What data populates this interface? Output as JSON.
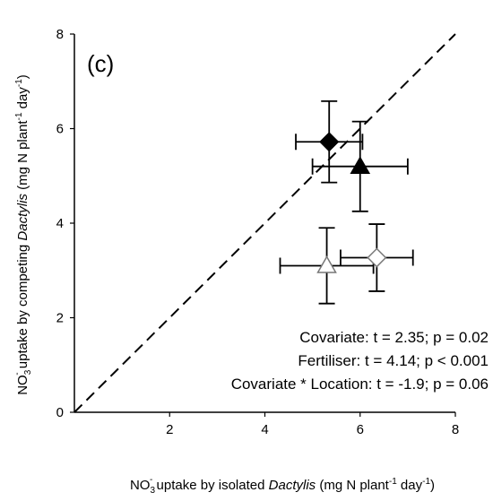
{
  "chart_data": {
    "type": "scatter",
    "panel_label": "(c)",
    "x_label_parts": [
      "NO",
      "3",
      "-",
      " uptake by isolated ",
      "Dactylis",
      " (mg N plant",
      "-1",
      " day",
      "-1",
      ")"
    ],
    "y_label_parts": [
      "NO",
      "3",
      "-",
      " uptake by competing ",
      "Dactylis",
      " (mg N plant",
      "-1",
      " day",
      "-1",
      ")"
    ],
    "annotations": [
      "Covariate: t = 2.35; p = 0.02",
      "Fertiliser: t = 4.14; p < 0.001",
      "Covariate * Location: t = -1.9; p = 0.06"
    ],
    "xlim": [
      0,
      8
    ],
    "xticks": [
      2,
      4,
      6,
      8
    ],
    "ylim": [
      0,
      8
    ],
    "yticks": [
      0,
      2,
      4,
      6,
      8
    ],
    "points": [
      {
        "x": 5.35,
        "y": 5.72,
        "xerr": 0.7,
        "yerr": 0.86,
        "marker": "diamond",
        "filled": true
      },
      {
        "x": 6.0,
        "y": 5.2,
        "xerr": 1.0,
        "yerr": 0.95,
        "marker": "triangle",
        "filled": true
      },
      {
        "x": 5.3,
        "y": 3.1,
        "xerr": 0.98,
        "yerr": 0.8,
        "marker": "triangle",
        "filled": false
      },
      {
        "x": 6.35,
        "y": 3.27,
        "xerr": 0.76,
        "yerr": 0.71,
        "marker": "diamond",
        "filled": false
      }
    ],
    "color": "#000000"
  }
}
